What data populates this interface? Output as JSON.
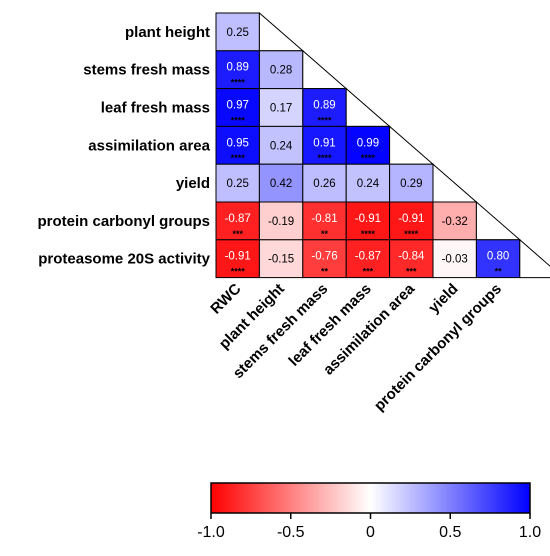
{
  "chart_data": {
    "type": "heatmap",
    "layout": "lower-triangle",
    "rows": [
      "plant height",
      "stems fresh mass",
      "leaf fresh mass",
      "assimilation area",
      "yield",
      "protein carbonyl groups",
      "proteasome 20S activity"
    ],
    "columns": [
      "RWC",
      "plant height",
      "stems fresh mass",
      "leaf fresh mass",
      "assimilation area",
      "yield",
      "protein carbonyl groups"
    ],
    "values": [
      [
        0.25
      ],
      [
        0.89,
        0.28
      ],
      [
        0.97,
        0.17,
        0.89
      ],
      [
        0.95,
        0.24,
        0.91,
        0.99
      ],
      [
        0.25,
        0.42,
        0.26,
        0.24,
        0.29
      ],
      [
        -0.87,
        -0.19,
        -0.81,
        -0.91,
        -0.91,
        -0.32
      ],
      [
        -0.91,
        -0.15,
        -0.76,
        -0.87,
        -0.84,
        -0.03,
        0.8
      ]
    ],
    "labels": [
      [
        "0.25"
      ],
      [
        "0.89",
        "0.28"
      ],
      [
        "0.97",
        "0.17",
        "0.89"
      ],
      [
        "0.95",
        "0.24",
        "0.91",
        "0.99"
      ],
      [
        "0.25",
        "0.42",
        "0.26",
        "0.24",
        "0.29"
      ],
      [
        "-0.87",
        "-0.19",
        "-0.81",
        "-0.91",
        "-0.91",
        "-0.32"
      ],
      [
        "-0.91",
        "-0.15",
        "-0.76",
        "-0.87",
        "-0.84",
        "-0.03",
        "0.80"
      ]
    ],
    "significance": [
      [
        ""
      ],
      [
        "****",
        ""
      ],
      [
        "****",
        "",
        "****"
      ],
      [
        "****",
        "",
        "****",
        "****"
      ],
      [
        "",
        "",
        "",
        "",
        ""
      ],
      [
        "***",
        "",
        "**",
        "****",
        "****",
        ""
      ],
      [
        "****",
        "",
        "**",
        "***",
        "***",
        "",
        "**"
      ]
    ],
    "colorbar": {
      "range": [
        -1.0,
        1.0
      ],
      "ticks": [
        -1.0,
        -0.5,
        0,
        0.5,
        1.0
      ],
      "tick_labels": [
        "-1.0",
        "-0.5",
        "0",
        "0.5",
        "1.0"
      ],
      "colors": {
        "low": "#ff0000",
        "mid": "#ffffff",
        "high": "#0000ff"
      }
    }
  }
}
